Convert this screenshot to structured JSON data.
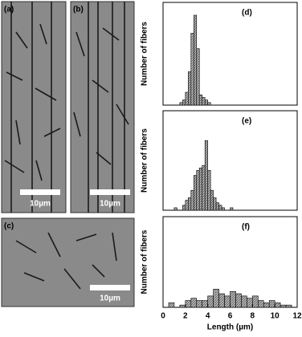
{
  "images": [
    {
      "label": "(a)",
      "scale_bar": "10µm"
    },
    {
      "label": "(b)",
      "scale_bar": "10µm"
    },
    {
      "label": "(c)",
      "scale_bar": "10µm"
    }
  ],
  "chart_data": [
    {
      "type": "histogram",
      "title": "(d)",
      "ylabel": "Number of fibers",
      "color": "#999999",
      "bins": [
        1.5,
        1.75,
        2.0,
        2.25,
        2.5,
        2.75,
        3.0,
        3.25,
        3.5,
        3.75,
        4.0,
        4.25
      ],
      "values": [
        1,
        2,
        5,
        13,
        28,
        35,
        22,
        4,
        3,
        2,
        1
      ],
      "xlim": [
        0,
        12
      ],
      "ylim": [
        0,
        40
      ]
    },
    {
      "type": "histogram",
      "title": "(e)",
      "ylabel": "Number of fibers",
      "color": "#999999",
      "bins": [
        1.0,
        1.25,
        1.5,
        1.75,
        2.0,
        2.25,
        2.5,
        2.75,
        3.0,
        3.25,
        3.5,
        3.75,
        4.0,
        4.25,
        4.5,
        4.75,
        5.0,
        5.25,
        5.5,
        5.75,
        6.0,
        6.25
      ],
      "values": [
        1,
        0,
        0,
        2,
        4,
        5,
        8,
        14,
        16,
        17,
        18,
        28,
        16,
        8,
        5,
        3,
        2,
        1,
        0,
        0,
        1
      ],
      "xlim": [
        0,
        12
      ],
      "ylim": [
        0,
        40
      ]
    },
    {
      "type": "histogram",
      "title": "(f)",
      "ylabel": "Number of fibers",
      "xlabel": "Length (µm)",
      "color": "#999999",
      "bins": [
        0.5,
        1.0,
        1.5,
        2.0,
        2.5,
        3.0,
        3.5,
        4.0,
        4.5,
        5.0,
        5.5,
        6.0,
        6.5,
        7.0,
        7.5,
        8.0,
        8.5,
        9.0,
        9.5,
        10.0,
        10.5,
        11.0,
        11.5
      ],
      "values": [
        2,
        0,
        1,
        3,
        4,
        3,
        3,
        5,
        8,
        6,
        5,
        7,
        6,
        5,
        4,
        5,
        3,
        2,
        3,
        2,
        1,
        1
      ],
      "xlim": [
        0,
        12
      ],
      "ylim": [
        0,
        40
      ],
      "xticks": [
        0,
        2,
        4,
        6,
        8,
        10,
        12
      ]
    }
  ]
}
